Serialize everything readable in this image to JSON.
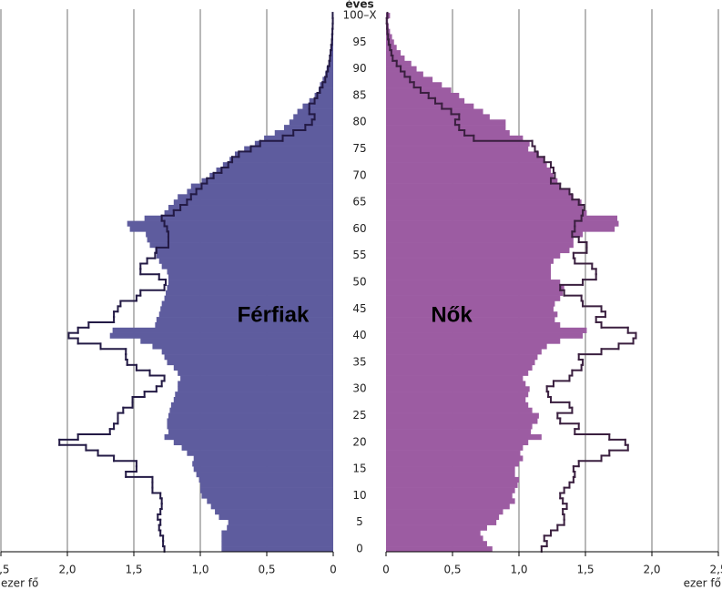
{
  "chart_data": {
    "type": "pyramid",
    "y_label": "éves",
    "x_label": "ezer fő",
    "labels": {
      "left": "Férfiak",
      "right": "Nők"
    },
    "categories": [
      "0",
      null,
      null,
      null,
      null,
      "5",
      null,
      null,
      null,
      null,
      "10",
      null,
      null,
      null,
      null,
      "15",
      null,
      null,
      null,
      null,
      "20",
      null,
      null,
      null,
      null,
      "25",
      null,
      null,
      null,
      null,
      "30",
      null,
      null,
      null,
      null,
      "35",
      null,
      null,
      null,
      null,
      "40",
      null,
      null,
      null,
      null,
      "45",
      null,
      null,
      null,
      null,
      "50",
      null,
      null,
      null,
      null,
      "55",
      null,
      null,
      null,
      null,
      "60",
      null,
      null,
      null,
      null,
      "65",
      null,
      null,
      null,
      null,
      "70",
      null,
      null,
      null,
      null,
      "75",
      null,
      null,
      null,
      null,
      "80",
      null,
      null,
      null,
      null,
      "85",
      null,
      null,
      null,
      null,
      "90",
      null,
      null,
      null,
      null,
      "95",
      null,
      null,
      null,
      null,
      "100–X"
    ],
    "xlim": [
      0,
      2.5
    ],
    "xticks": [
      {
        "value": 2.5,
        "label": "2,5"
      },
      {
        "value": 2,
        "label": "2,0"
      },
      {
        "value": 1.5,
        "label": "1,5"
      },
      {
        "value": 1,
        "label": "1,0"
      },
      {
        "value": 0.5,
        "label": "0,5"
      },
      0
    ],
    "grid": true,
    "series": [
      {
        "side": "left",
        "style": "fill",
        "color": "#5e5c9e",
        "values": [
          0.84,
          0.84,
          0.84,
          0.84,
          0.8,
          0.79,
          0.86,
          0.89,
          0.92,
          0.95,
          0.99,
          1.0,
          1.0,
          1.01,
          1.03,
          1.05,
          1.06,
          1.05,
          1.1,
          1.14,
          1.2,
          1.27,
          1.24,
          1.25,
          1.25,
          1.24,
          1.23,
          1.22,
          1.2,
          1.19,
          1.17,
          1.17,
          1.15,
          1.17,
          1.2,
          1.25,
          1.27,
          1.29,
          1.36,
          1.45,
          1.68,
          1.66,
          1.34,
          1.33,
          1.31,
          1.3,
          1.29,
          1.27,
          1.26,
          1.25,
          1.24,
          1.24,
          1.25,
          1.29,
          1.31,
          1.33,
          1.34,
          1.38,
          1.4,
          1.41,
          1.53,
          1.55,
          1.42,
          1.27,
          1.24,
          1.2,
          1.17,
          1.1,
          1.07,
          0.99,
          0.93,
          0.88,
          0.83,
          0.78,
          0.74,
          0.67,
          0.59,
          0.52,
          0.44,
          0.37,
          0.33,
          0.3,
          0.27,
          0.23,
          0.18,
          0.14,
          0.11,
          0.1,
          0.08,
          0.06,
          0.05,
          0.035,
          0.03,
          0.02,
          0.015,
          0.01,
          0.008,
          0.005,
          0.004,
          0.003,
          0.005
        ]
      },
      {
        "side": "left",
        "style": "outline",
        "color": "#231a45",
        "values": [
          1.27,
          1.28,
          1.28,
          1.3,
          1.31,
          1.3,
          1.32,
          1.3,
          1.29,
          1.29,
          1.3,
          1.36,
          1.36,
          1.36,
          1.56,
          1.48,
          1.48,
          1.65,
          1.77,
          1.86,
          2.06,
          1.92,
          1.68,
          1.65,
          1.62,
          1.62,
          1.58,
          1.51,
          1.51,
          1.42,
          1.33,
          1.29,
          1.27,
          1.38,
          1.48,
          1.55,
          1.56,
          1.56,
          1.75,
          1.92,
          1.99,
          1.92,
          1.84,
          1.65,
          1.65,
          1.62,
          1.6,
          1.48,
          1.45,
          1.27,
          1.26,
          1.31,
          1.45,
          1.45,
          1.4,
          1.34,
          1.33,
          1.24,
          1.24,
          1.24,
          1.25,
          1.27,
          1.29,
          1.2,
          1.15,
          1.1,
          1.07,
          1.03,
          0.99,
          0.95,
          0.9,
          0.84,
          0.79,
          0.76,
          0.71,
          0.62,
          0.55,
          0.38,
          0.3,
          0.21,
          0.16,
          0.14,
          0.18,
          0.18,
          0.14,
          0.12,
          0.1,
          0.08,
          0.06,
          0.05,
          0.04,
          0.03,
          0.025,
          0.02,
          0.015,
          0.01,
          0.008,
          0.006,
          0.004,
          0.003,
          0.004
        ]
      },
      {
        "side": "right",
        "style": "fill",
        "color": "#9c5ca2",
        "values": [
          0.8,
          0.76,
          0.73,
          0.71,
          0.76,
          0.83,
          0.85,
          0.88,
          0.93,
          0.97,
          0.95,
          0.97,
          0.99,
          1.0,
          0.97,
          0.97,
          1.0,
          1.03,
          1.01,
          1.03,
          1.07,
          1.17,
          1.09,
          1.1,
          1.14,
          1.15,
          1.1,
          1.07,
          1.05,
          1.07,
          1.08,
          1.05,
          1.03,
          1.07,
          1.1,
          1.12,
          1.14,
          1.17,
          1.21,
          1.31,
          1.48,
          1.51,
          1.31,
          1.27,
          1.29,
          1.26,
          1.27,
          1.31,
          1.33,
          1.34,
          1.31,
          1.24,
          1.24,
          1.24,
          1.26,
          1.31,
          1.38,
          1.41,
          1.41,
          1.48,
          1.72,
          1.75,
          1.74,
          1.51,
          1.48,
          1.47,
          1.41,
          1.38,
          1.31,
          1.29,
          1.26,
          1.24,
          1.21,
          1.19,
          1.15,
          1.07,
          1.08,
          1.03,
          0.93,
          0.9,
          0.9,
          0.78,
          0.73,
          0.66,
          0.59,
          0.55,
          0.49,
          0.42,
          0.35,
          0.28,
          0.23,
          0.19,
          0.14,
          0.11,
          0.08,
          0.06,
          0.045,
          0.03,
          0.02,
          0.015,
          0.03
        ]
      },
      {
        "side": "right",
        "style": "outline",
        "color": "#3a1f3f",
        "values": [
          1.17,
          1.21,
          1.19,
          1.24,
          1.29,
          1.34,
          1.34,
          1.33,
          1.36,
          1.33,
          1.31,
          1.34,
          1.38,
          1.41,
          1.42,
          1.41,
          1.45,
          1.62,
          1.68,
          1.82,
          1.8,
          1.68,
          1.42,
          1.45,
          1.31,
          1.29,
          1.4,
          1.38,
          1.24,
          1.22,
          1.21,
          1.26,
          1.38,
          1.4,
          1.47,
          1.48,
          1.45,
          1.62,
          1.75,
          1.86,
          1.88,
          1.82,
          1.62,
          1.58,
          1.65,
          1.62,
          1.48,
          1.47,
          1.34,
          1.31,
          1.48,
          1.58,
          1.58,
          1.55,
          1.42,
          1.41,
          1.51,
          1.51,
          1.45,
          1.4,
          1.42,
          1.42,
          1.47,
          1.48,
          1.49,
          1.45,
          1.4,
          1.38,
          1.31,
          1.24,
          1.27,
          1.26,
          1.24,
          1.19,
          1.14,
          1.12,
          1.1,
          0.66,
          0.59,
          0.55,
          0.52,
          0.55,
          0.49,
          0.42,
          0.37,
          0.32,
          0.26,
          0.21,
          0.18,
          0.14,
          0.11,
          0.08,
          0.05,
          0.04,
          0.03,
          0.02,
          0.015,
          0.01,
          0.008,
          0.005,
          0.01
        ]
      }
    ]
  }
}
